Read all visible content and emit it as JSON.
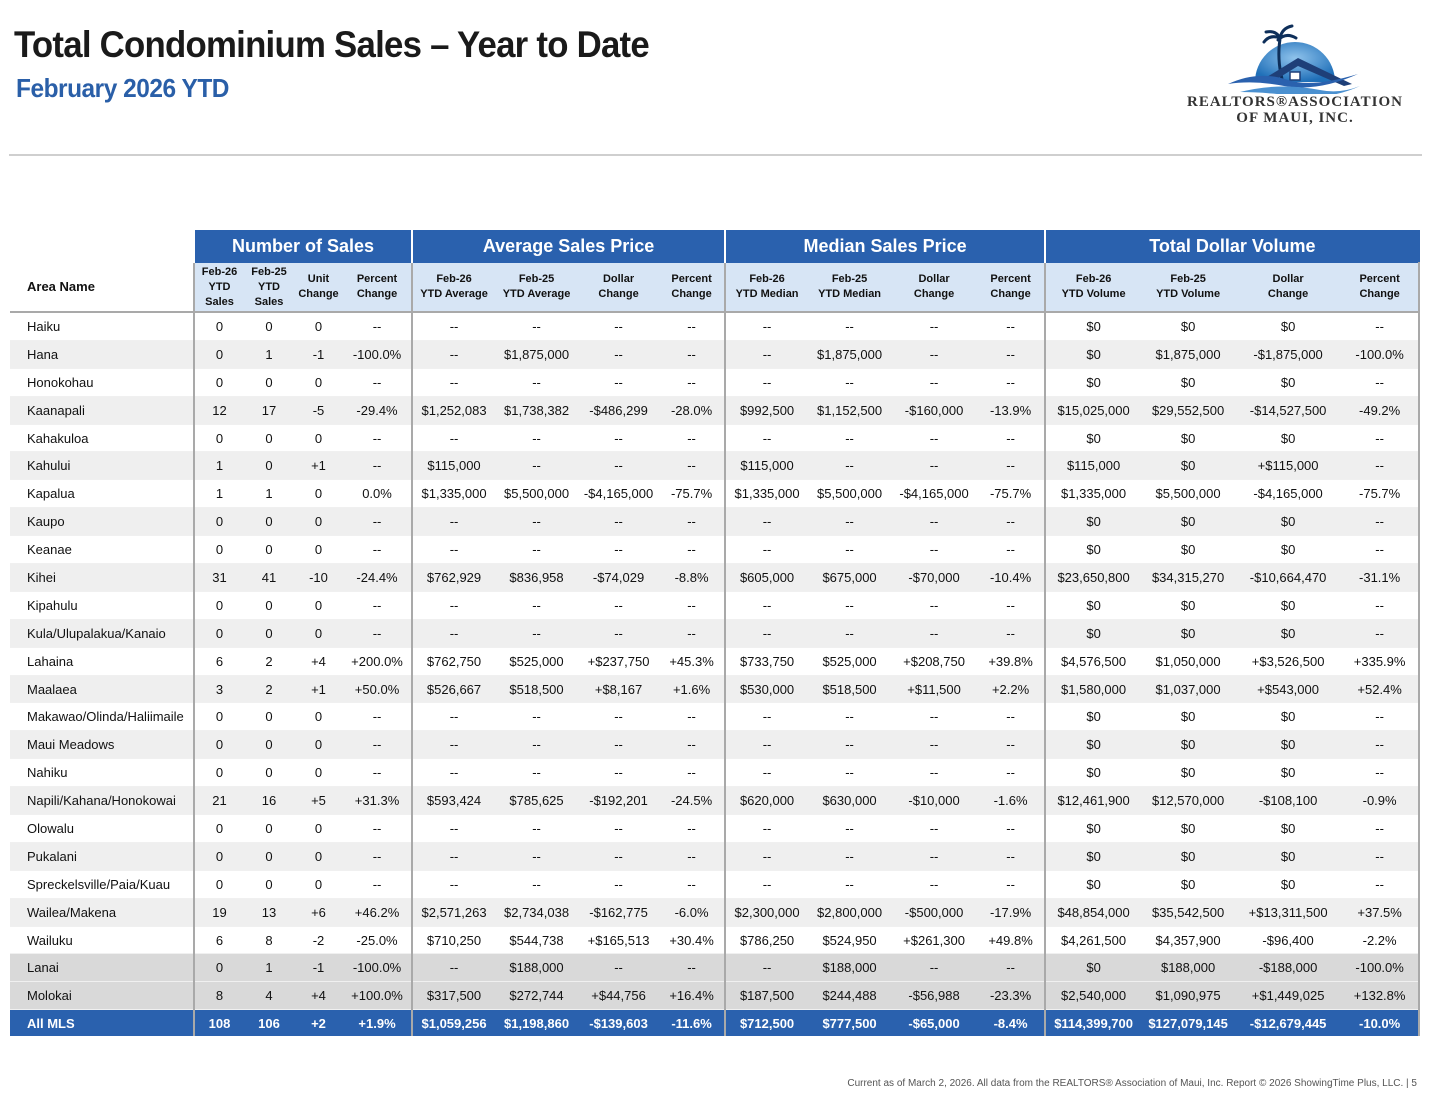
{
  "header": {
    "title": "Total Condominium Sales – Year to Date",
    "subtitle": "February 2026 YTD"
  },
  "logo": {
    "line1": "REALTORS®ASSOCIATION",
    "line2": "OF MAUI, INC.",
    "colors": {
      "sun": "#1f6fb8",
      "roof": "#1e3f78",
      "wave": "#4a90d0"
    }
  },
  "colors": {
    "header_blue": "#2a61ae",
    "subheader_blue": "#d7e5f5",
    "alt_row": "#efefef",
    "island_row": "#d9d9d9"
  },
  "table": {
    "groups": [
      "Number of Sales",
      "Average Sales Price",
      "Median Sales Price",
      "Total Dollar Volume"
    ],
    "area_header": "Area Name",
    "columns": [
      [
        "Feb-26",
        "YTD",
        "Sales"
      ],
      [
        "Feb-25",
        "YTD",
        "Sales"
      ],
      [
        "Unit",
        "Change"
      ],
      [
        "Percent",
        "Change"
      ],
      [
        "Feb-26",
        "YTD Average"
      ],
      [
        "Feb-25",
        "YTD Average"
      ],
      [
        "Dollar",
        "Change"
      ],
      [
        "Percent",
        "Change"
      ],
      [
        "Feb-26",
        "YTD Median"
      ],
      [
        "Feb-25",
        "YTD Median"
      ],
      [
        "Dollar",
        "Change"
      ],
      [
        "Percent",
        "Change"
      ],
      [
        "Feb-26",
        "YTD Volume"
      ],
      [
        "Feb-25",
        "YTD Volume"
      ],
      [
        "Dollar",
        "Change"
      ],
      [
        "Percent",
        "Change"
      ]
    ],
    "rows": [
      {
        "area": "Haiku",
        "cells": [
          "0",
          "0",
          "0",
          "--",
          "--",
          "--",
          "--",
          "--",
          "--",
          "--",
          "--",
          "--",
          "$0",
          "$0",
          "$0",
          "--"
        ]
      },
      {
        "area": "Hana",
        "cells": [
          "0",
          "1",
          "-1",
          "-100.0%",
          "--",
          "$1,875,000",
          "--",
          "--",
          "--",
          "$1,875,000",
          "--",
          "--",
          "$0",
          "$1,875,000",
          "-$1,875,000",
          "-100.0%"
        ]
      },
      {
        "area": "Honokohau",
        "cells": [
          "0",
          "0",
          "0",
          "--",
          "--",
          "--",
          "--",
          "--",
          "--",
          "--",
          "--",
          "--",
          "$0",
          "$0",
          "$0",
          "--"
        ]
      },
      {
        "area": "Kaanapali",
        "cells": [
          "12",
          "17",
          "-5",
          "-29.4%",
          "$1,252,083",
          "$1,738,382",
          "-$486,299",
          "-28.0%",
          "$992,500",
          "$1,152,500",
          "-$160,000",
          "-13.9%",
          "$15,025,000",
          "$29,552,500",
          "-$14,527,500",
          "-49.2%"
        ]
      },
      {
        "area": "Kahakuloa",
        "cells": [
          "0",
          "0",
          "0",
          "--",
          "--",
          "--",
          "--",
          "--",
          "--",
          "--",
          "--",
          "--",
          "$0",
          "$0",
          "$0",
          "--"
        ]
      },
      {
        "area": "Kahului",
        "cells": [
          "1",
          "0",
          "+1",
          "--",
          "$115,000",
          "--",
          "--",
          "--",
          "$115,000",
          "--",
          "--",
          "--",
          "$115,000",
          "$0",
          "+$115,000",
          "--"
        ]
      },
      {
        "area": "Kapalua",
        "cells": [
          "1",
          "1",
          "0",
          "0.0%",
          "$1,335,000",
          "$5,500,000",
          "-$4,165,000",
          "-75.7%",
          "$1,335,000",
          "$5,500,000",
          "-$4,165,000",
          "-75.7%",
          "$1,335,000",
          "$5,500,000",
          "-$4,165,000",
          "-75.7%"
        ]
      },
      {
        "area": "Kaupo",
        "cells": [
          "0",
          "0",
          "0",
          "--",
          "--",
          "--",
          "--",
          "--",
          "--",
          "--",
          "--",
          "--",
          "$0",
          "$0",
          "$0",
          "--"
        ]
      },
      {
        "area": "Keanae",
        "cells": [
          "0",
          "0",
          "0",
          "--",
          "--",
          "--",
          "--",
          "--",
          "--",
          "--",
          "--",
          "--",
          "$0",
          "$0",
          "$0",
          "--"
        ]
      },
      {
        "area": "Kihei",
        "cells": [
          "31",
          "41",
          "-10",
          "-24.4%",
          "$762,929",
          "$836,958",
          "-$74,029",
          "-8.8%",
          "$605,000",
          "$675,000",
          "-$70,000",
          "-10.4%",
          "$23,650,800",
          "$34,315,270",
          "-$10,664,470",
          "-31.1%"
        ]
      },
      {
        "area": "Kipahulu",
        "cells": [
          "0",
          "0",
          "0",
          "--",
          "--",
          "--",
          "--",
          "--",
          "--",
          "--",
          "--",
          "--",
          "$0",
          "$0",
          "$0",
          "--"
        ]
      },
      {
        "area": "Kula/Ulupalakua/Kanaio",
        "cells": [
          "0",
          "0",
          "0",
          "--",
          "--",
          "--",
          "--",
          "--",
          "--",
          "--",
          "--",
          "--",
          "$0",
          "$0",
          "$0",
          "--"
        ]
      },
      {
        "area": "Lahaina",
        "cells": [
          "6",
          "2",
          "+4",
          "+200.0%",
          "$762,750",
          "$525,000",
          "+$237,750",
          "+45.3%",
          "$733,750",
          "$525,000",
          "+$208,750",
          "+39.8%",
          "$4,576,500",
          "$1,050,000",
          "+$3,526,500",
          "+335.9%"
        ]
      },
      {
        "area": "Maalaea",
        "cells": [
          "3",
          "2",
          "+1",
          "+50.0%",
          "$526,667",
          "$518,500",
          "+$8,167",
          "+1.6%",
          "$530,000",
          "$518,500",
          "+$11,500",
          "+2.2%",
          "$1,580,000",
          "$1,037,000",
          "+$543,000",
          "+52.4%"
        ]
      },
      {
        "area": "Makawao/Olinda/Haliimaile",
        "cells": [
          "0",
          "0",
          "0",
          "--",
          "--",
          "--",
          "--",
          "--",
          "--",
          "--",
          "--",
          "--",
          "$0",
          "$0",
          "$0",
          "--"
        ]
      },
      {
        "area": "Maui Meadows",
        "cells": [
          "0",
          "0",
          "0",
          "--",
          "--",
          "--",
          "--",
          "--",
          "--",
          "--",
          "--",
          "--",
          "$0",
          "$0",
          "$0",
          "--"
        ]
      },
      {
        "area": "Nahiku",
        "cells": [
          "0",
          "0",
          "0",
          "--",
          "--",
          "--",
          "--",
          "--",
          "--",
          "--",
          "--",
          "--",
          "$0",
          "$0",
          "$0",
          "--"
        ]
      },
      {
        "area": "Napili/Kahana/Honokowai",
        "cells": [
          "21",
          "16",
          "+5",
          "+31.3%",
          "$593,424",
          "$785,625",
          "-$192,201",
          "-24.5%",
          "$620,000",
          "$630,000",
          "-$10,000",
          "-1.6%",
          "$12,461,900",
          "$12,570,000",
          "-$108,100",
          "-0.9%"
        ]
      },
      {
        "area": "Olowalu",
        "cells": [
          "0",
          "0",
          "0",
          "--",
          "--",
          "--",
          "--",
          "--",
          "--",
          "--",
          "--",
          "--",
          "$0",
          "$0",
          "$0",
          "--"
        ]
      },
      {
        "area": "Pukalani",
        "cells": [
          "0",
          "0",
          "0",
          "--",
          "--",
          "--",
          "--",
          "--",
          "--",
          "--",
          "--",
          "--",
          "$0",
          "$0",
          "$0",
          "--"
        ]
      },
      {
        "area": "Spreckelsville/Paia/Kuau",
        "cells": [
          "0",
          "0",
          "0",
          "--",
          "--",
          "--",
          "--",
          "--",
          "--",
          "--",
          "--",
          "--",
          "$0",
          "$0",
          "$0",
          "--"
        ]
      },
      {
        "area": "Wailea/Makena",
        "cells": [
          "19",
          "13",
          "+6",
          "+46.2%",
          "$2,571,263",
          "$2,734,038",
          "-$162,775",
          "-6.0%",
          "$2,300,000",
          "$2,800,000",
          "-$500,000",
          "-17.9%",
          "$48,854,000",
          "$35,542,500",
          "+$13,311,500",
          "+37.5%"
        ]
      },
      {
        "area": "Wailuku",
        "cells": [
          "6",
          "8",
          "-2",
          "-25.0%",
          "$710,250",
          "$544,738",
          "+$165,513",
          "+30.4%",
          "$786,250",
          "$524,950",
          "+$261,300",
          "+49.8%",
          "$4,261,500",
          "$4,357,900",
          "-$96,400",
          "-2.2%"
        ]
      },
      {
        "area": "Lanai",
        "island": true,
        "cells": [
          "0",
          "1",
          "-1",
          "-100.0%",
          "--",
          "$188,000",
          "--",
          "--",
          "--",
          "$188,000",
          "--",
          "--",
          "$0",
          "$188,000",
          "-$188,000",
          "-100.0%"
        ]
      },
      {
        "area": "Molokai",
        "island": true,
        "cells": [
          "8",
          "4",
          "+4",
          "+100.0%",
          "$317,500",
          "$272,744",
          "+$44,756",
          "+16.4%",
          "$187,500",
          "$244,488",
          "-$56,988",
          "-23.3%",
          "$2,540,000",
          "$1,090,975",
          "+$1,449,025",
          "+132.8%"
        ]
      }
    ],
    "total": {
      "area": "All MLS",
      "cells": [
        "108",
        "106",
        "+2",
        "+1.9%",
        "$1,059,256",
        "$1,198,860",
        "-$139,603",
        "-11.6%",
        "$712,500",
        "$777,500",
        "-$65,000",
        "-8.4%",
        "$114,399,700",
        "$127,079,145",
        "-$12,679,445",
        "-10.0%"
      ]
    }
  },
  "footer": "Current as of March 2, 2026. All data from the REALTORS® Association of Maui, Inc. Report © 2026 ShowingTime Plus, LLC.  |  5"
}
